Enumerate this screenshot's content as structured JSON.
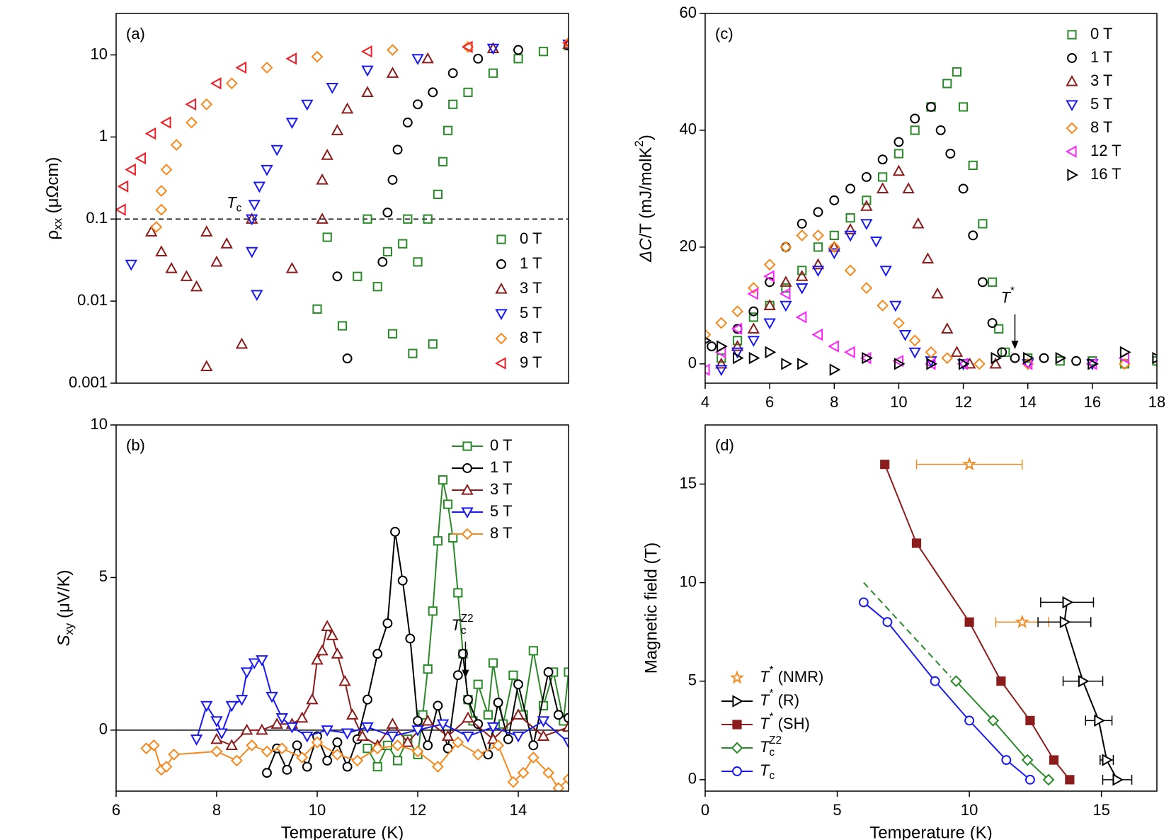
{
  "chart_data": [
    {
      "type": "scatter",
      "panel_label": "(a)",
      "ylabel": "ρxx (μΩcm)",
      "yscale": "log",
      "xlim": [
        6,
        15
      ],
      "ylim": [
        0.001,
        32
      ],
      "yticks": [
        0.001,
        0.01,
        0.1,
        1,
        10
      ],
      "legend": "lower right",
      "threshold": {
        "value": 0.1,
        "label": "Tc"
      },
      "series": [
        {
          "name": "0 T",
          "color": "#2a8a2a",
          "marker": "square",
          "x": [
            10,
            10.2,
            10.5,
            10.8,
            11,
            11.2,
            11.4,
            11.5,
            11.7,
            11.8,
            11.9,
            12.0,
            12.2,
            12.3,
            12.4,
            12.5,
            12.6,
            12.7,
            13,
            13.5,
            14,
            14.5,
            15
          ],
          "values": [
            0.008,
            0.06,
            0.005,
            0.02,
            0.1,
            0.015,
            0.04,
            0.004,
            0.05,
            0.1,
            0.0023,
            0.03,
            0.1,
            0.003,
            0.2,
            0.5,
            1.2,
            2.5,
            3.5,
            6,
            9,
            11,
            13
          ]
        },
        {
          "name": "1 T",
          "color": "#000000",
          "marker": "circle",
          "x": [
            10.6,
            10.4,
            11.3,
            11.4,
            11.5,
            11.6,
            11.8,
            12,
            12.3,
            12.7,
            13.2,
            14,
            15
          ],
          "values": [
            0.002,
            0.02,
            0.03,
            0.12,
            0.3,
            0.7,
            1.5,
            2.5,
            3.5,
            6,
            9,
            11.5,
            13
          ]
        },
        {
          "name": "3 T",
          "color": "#8b1c1c",
          "marker": "triangle-up",
          "x": [
            6.7,
            6.9,
            7.1,
            7.4,
            7.6,
            7.8,
            7.8,
            8,
            8.2,
            8.5,
            8.7,
            9.5,
            10.1,
            10.1,
            10.2,
            10.4,
            10.6,
            11,
            11.5,
            12.2,
            13.5,
            15
          ],
          "values": [
            0.07,
            0.04,
            0.025,
            0.02,
            0.015,
            0.0016,
            0.07,
            0.03,
            0.05,
            0.003,
            0.1,
            0.025,
            0.1,
            0.3,
            0.6,
            1.2,
            2.2,
            3.5,
            6,
            9,
            12,
            13.5
          ]
        },
        {
          "name": "5 T",
          "color": "#1a1aee",
          "marker": "triangle-down",
          "x": [
            6.3,
            8.7,
            8.8,
            8.7,
            8.75,
            8.85,
            9,
            9.2,
            9.5,
            9.8,
            10.3,
            11,
            12,
            13.5,
            15
          ],
          "values": [
            0.028,
            0.04,
            0.012,
            0.1,
            0.15,
            0.25,
            0.4,
            0.7,
            1.5,
            2.5,
            4,
            6.5,
            9,
            12,
            13.5
          ]
        },
        {
          "name": "8 T",
          "color": "#f5891f",
          "marker": "diamond",
          "x": [
            6.8,
            6.9,
            6.9,
            7,
            7.2,
            7.5,
            7.8,
            8.3,
            9,
            10,
            11.5,
            13,
            15
          ],
          "values": [
            0.08,
            0.13,
            0.22,
            0.4,
            0.8,
            1.5,
            2.5,
            4.5,
            7,
            9.5,
            11.5,
            12.5,
            14
          ]
        },
        {
          "name": "9 T",
          "color": "#ee1c25",
          "marker": "triangle-left",
          "x": [
            6.1,
            6.15,
            6.3,
            6.5,
            6.7,
            7,
            7.5,
            8,
            8.5,
            9.5,
            11,
            13,
            15
          ],
          "values": [
            0.13,
            0.25,
            0.4,
            0.55,
            1.1,
            1.5,
            2.5,
            4.5,
            7,
            9,
            11,
            12.5,
            14
          ]
        }
      ]
    },
    {
      "type": "line",
      "panel_label": "(b)",
      "xlabel": "Temperature (K)",
      "ylabel": "Sxy (μV/K)",
      "xlim": [
        6,
        15
      ],
      "ylim": [
        -2,
        10
      ],
      "xticks": [
        6,
        8,
        10,
        12,
        14
      ],
      "yticks": [
        0,
        5,
        10
      ],
      "legend": "upper right",
      "zero_line": true,
      "annotation": "TcZ2",
      "series": [
        {
          "name": "0 T",
          "color": "#2a8a2a",
          "marker": "square",
          "x": [
            11,
            11.2,
            11.4,
            11.6,
            11.8,
            12.0,
            12.1,
            12.2,
            12.3,
            12.4,
            12.5,
            12.6,
            12.7,
            12.8,
            12.9,
            13.0,
            13.1,
            13.2,
            13.4,
            13.5,
            13.7,
            13.9,
            14.1,
            14.3,
            14.5,
            14.7,
            14.9,
            15
          ],
          "values": [
            -0.6,
            -1.2,
            -0.5,
            -1.0,
            -0.3,
            -0.8,
            0.5,
            2.0,
            3.9,
            6.2,
            8.2,
            7.4,
            6.3,
            4.5,
            2.5,
            1.0,
            0.3,
            1.5,
            0.5,
            2.2,
            0.2,
            1.8,
            0.5,
            2.6,
            0.8,
            1.9,
            0.3,
            1.9
          ]
        },
        {
          "name": "1 T",
          "color": "#000000",
          "marker": "circle",
          "x": [
            9.0,
            9.2,
            9.4,
            9.6,
            9.8,
            10.0,
            10.2,
            10.4,
            10.6,
            10.8,
            11.0,
            11.2,
            11.4,
            11.55,
            11.7,
            11.85,
            12.0,
            12.2,
            12.4,
            12.6,
            12.8,
            12.9,
            13.0,
            13.2,
            13.4,
            13.6,
            13.8,
            14.0,
            14.3,
            14.6,
            14.8,
            15
          ],
          "values": [
            -1.4,
            -0.6,
            -1.3,
            -0.5,
            -1.2,
            -0.2,
            -1.0,
            -0.4,
            -1.2,
            -0.3,
            1.0,
            2.5,
            3.5,
            6.5,
            4.9,
            3.0,
            0.3,
            -0.5,
            0.8,
            -0.6,
            1.8,
            2.5,
            1.0,
            0.2,
            -0.8,
            0.9,
            -0.3,
            1.5,
            -0.5,
            1.9,
            0.5,
            0.4
          ]
        },
        {
          "name": "3 T",
          "color": "#8b1c1c",
          "marker": "triangle-up",
          "x": [
            8.0,
            8.3,
            8.6,
            8.9,
            9.2,
            9.5,
            9.7,
            9.9,
            10.0,
            10.1,
            10.2,
            10.3,
            10.4,
            10.55,
            10.7,
            10.9,
            11.2,
            11.5,
            11.8,
            12.2,
            12.6,
            13.0,
            13.5,
            14.0,
            14.5,
            15
          ],
          "values": [
            -0.3,
            -0.5,
            0.0,
            0.0,
            0.2,
            0.2,
            0.4,
            1.0,
            2.3,
            2.6,
            3.4,
            3.1,
            2.5,
            1.6,
            0.5,
            -0.2,
            -0.5,
            0.2,
            -0.4,
            0.3,
            -0.2,
            0.4,
            -0.3,
            0.5,
            -0.2,
            0.1
          ]
        },
        {
          "name": "5 T",
          "color": "#1a1aee",
          "marker": "triangle-down",
          "x": [
            7.6,
            7.8,
            8.0,
            8.1,
            8.3,
            8.5,
            8.6,
            8.75,
            8.9,
            9.1,
            9.3,
            9.5,
            9.8,
            10.2,
            10.6,
            11.0,
            11.5,
            12.0,
            12.5,
            13.0,
            13.5,
            14.0,
            14.5,
            15
          ],
          "values": [
            -0.3,
            0.8,
            0.3,
            -0.1,
            0.8,
            1.0,
            1.9,
            2.2,
            2.3,
            1.1,
            0.4,
            0.1,
            -0.2,
            0.0,
            -0.1,
            0.1,
            -0.2,
            0.0,
            0.2,
            -0.2,
            0.1,
            -0.2,
            0.3,
            -0.4
          ]
        },
        {
          "name": "8 T",
          "color": "#f5891f",
          "marker": "diamond",
          "x": [
            6.6,
            6.75,
            6.9,
            7.0,
            7.15,
            8.0,
            8.4,
            8.7,
            9.0,
            9.3,
            9.7,
            10.0,
            10.4,
            10.8,
            11.2,
            11.6,
            12.0,
            12.4,
            12.8,
            13.2,
            13.6,
            13.9,
            14.1,
            14.3,
            14.6,
            14.8,
            15
          ],
          "values": [
            -0.6,
            -0.5,
            -1.3,
            -1.2,
            -0.8,
            -0.7,
            -1.0,
            -0.5,
            -0.7,
            -0.6,
            -0.9,
            -0.4,
            -0.8,
            -1.0,
            -0.6,
            -0.5,
            -0.7,
            -1.2,
            -0.4,
            -0.8,
            -0.5,
            -1.7,
            -1.4,
            -0.9,
            -1.4,
            -1.9,
            -1.6
          ]
        }
      ]
    },
    {
      "type": "scatter",
      "panel_label": "(c)",
      "ylabel": "ΔC/T (mJ/molK2)",
      "xlim": [
        4,
        18
      ],
      "ylim": [
        -3.3,
        60
      ],
      "xticks": [
        4,
        6,
        8,
        10,
        12,
        14,
        16,
        18
      ],
      "yticks": [
        0,
        20,
        40,
        60
      ],
      "legend": "upper right",
      "annotation": "T*",
      "series": [
        {
          "name": "0 T",
          "color": "#2a8a2a",
          "marker": "square",
          "x": [
            4.5,
            5,
            5.5,
            6,
            6.5,
            7,
            7.5,
            8,
            8.5,
            9,
            9.5,
            10,
            10.5,
            11,
            11.5,
            11.8,
            12,
            12.3,
            12.6,
            12.9,
            13.1,
            13.3,
            14,
            15,
            16,
            17,
            18
          ],
          "values": [
            1,
            4,
            8,
            10,
            13,
            16,
            20,
            22,
            25,
            28,
            32,
            36,
            40,
            44,
            48,
            50,
            44,
            34,
            24,
            14,
            6,
            2,
            1,
            0.5,
            0.5,
            0,
            0.5
          ]
        },
        {
          "name": "1 T",
          "color": "#000000",
          "marker": "circle",
          "x": [
            4.2,
            5,
            5.5,
            6,
            6.5,
            7,
            7.5,
            8,
            8.5,
            9,
            9.5,
            10,
            10.5,
            11,
            11.3,
            11.6,
            12,
            12.3,
            12.6,
            12.9,
            13.2,
            13.6,
            14.5,
            15.5
          ],
          "values": [
            3,
            6,
            9,
            14,
            20,
            24,
            26,
            28,
            30,
            32,
            35,
            38,
            42,
            44,
            40,
            36,
            30,
            22,
            14,
            7,
            2,
            1,
            1,
            0.5
          ]
        },
        {
          "name": "3 T",
          "color": "#8b1c1c",
          "marker": "triangle-up",
          "x": [
            4.5,
            5,
            5.5,
            6,
            6.5,
            7,
            7.5,
            8,
            8.5,
            9,
            9.5,
            10,
            10.3,
            10.6,
            10.9,
            11.2,
            11.5,
            11.8,
            12.2,
            13
          ],
          "values": [
            0,
            3,
            6,
            10,
            14,
            15,
            17,
            20,
            23,
            27,
            30,
            33,
            30,
            24,
            18,
            12,
            6,
            2,
            0,
            0
          ]
        },
        {
          "name": "5 T",
          "color": "#1a1aee",
          "marker": "triangle-down",
          "x": [
            4.5,
            5,
            5.5,
            6,
            6.5,
            7,
            7.5,
            8,
            8.5,
            9,
            9.3,
            9.6,
            9.9,
            10.2,
            10.5,
            11,
            12,
            14,
            16
          ],
          "values": [
            -1,
            2,
            4,
            7,
            10,
            13,
            16,
            19,
            22,
            24,
            21,
            16,
            10,
            5,
            2,
            0.5,
            0,
            0,
            0
          ]
        },
        {
          "name": "8 T",
          "color": "#f5891f",
          "marker": "diamond",
          "x": [
            4.0,
            4.5,
            5,
            5.5,
            6,
            6.5,
            7,
            7.5,
            8,
            8.5,
            9,
            9.5,
            10,
            10.5,
            11,
            11.5,
            12.5,
            14,
            17
          ],
          "values": [
            5,
            7,
            9,
            13,
            17,
            20,
            22,
            22,
            20,
            16,
            13,
            10,
            7,
            4,
            2,
            1,
            0,
            0,
            0
          ]
        },
        {
          "name": "12 T",
          "color": "#ff22ff",
          "marker": "triangle-left",
          "x": [
            4.0,
            4.5,
            5,
            5.5,
            6,
            6.5,
            7,
            7.5,
            8,
            8.5,
            9,
            10,
            11,
            12,
            14,
            16,
            17
          ],
          "values": [
            -1,
            2,
            6,
            12,
            15,
            12,
            8,
            5,
            3,
            2,
            1,
            0.5,
            0,
            0,
            0,
            0,
            1
          ]
        },
        {
          "name": "16 T",
          "color": "#000000",
          "marker": "triangle-right",
          "x": [
            4.0,
            4.5,
            5,
            5.5,
            6,
            6.5,
            7,
            8,
            9,
            10,
            11,
            12,
            13,
            14,
            15,
            16,
            17,
            18
          ],
          "values": [
            4,
            3,
            1,
            1,
            2,
            0,
            0,
            -1,
            1,
            0,
            0,
            0,
            1,
            1,
            1,
            0,
            2,
            1
          ]
        }
      ]
    },
    {
      "type": "line",
      "panel_label": "(d)",
      "xlabel": "Temperature (K)",
      "ylabel": "Magnetic field (T)",
      "xlim": [
        0,
        17.1
      ],
      "ylim": [
        -0.58,
        18
      ],
      "xticks": [
        0,
        5,
        10,
        15
      ],
      "yticks": [
        0,
        5,
        10,
        15
      ],
      "legend": "lower left",
      "series": [
        {
          "name": "T* (NMR)",
          "color": "#f08a24",
          "marker": "star",
          "line": false,
          "x": [
            10,
            12
          ],
          "values": [
            16,
            8
          ],
          "xerr": [
            2,
            1
          ]
        },
        {
          "name": "T* (R)",
          "color": "#000000",
          "marker": "triangle-right",
          "x": [
            13.7,
            13.6,
            14.3,
            14.9,
            15.2,
            15.6
          ],
          "values": [
            9,
            8,
            5,
            3,
            1,
            0
          ],
          "xerr": [
            1.0,
            1.0,
            0.75,
            0.5,
            0.25,
            0.55
          ]
        },
        {
          "name": "T* (SH)",
          "color": "#8b1c1c",
          "marker": "square",
          "filled": true,
          "x": [
            6.8,
            8.0,
            10.0,
            11.2,
            12.3,
            13.2,
            13.8
          ],
          "values": [
            16,
            12,
            8,
            5,
            3,
            1,
            0
          ]
        },
        {
          "name": "TcZ2",
          "color": "#2a8a2a",
          "marker": "diamond",
          "x": [
            9.5,
            10.9,
            12.2,
            13.0
          ],
          "values": [
            5,
            3,
            1,
            0
          ]
        },
        {
          "name": "Tc",
          "color": "#1a1aee",
          "marker": "circle",
          "x": [
            6.0,
            6.9,
            8.7,
            10.0,
            11.4,
            12.3
          ],
          "values": [
            9,
            8,
            5,
            3,
            1,
            0
          ]
        }
      ],
      "guide": {
        "color": "#2a8a2a",
        "dashed": true,
        "x": [
          6,
          9.3
        ],
        "values": [
          10,
          5.2
        ]
      }
    }
  ]
}
